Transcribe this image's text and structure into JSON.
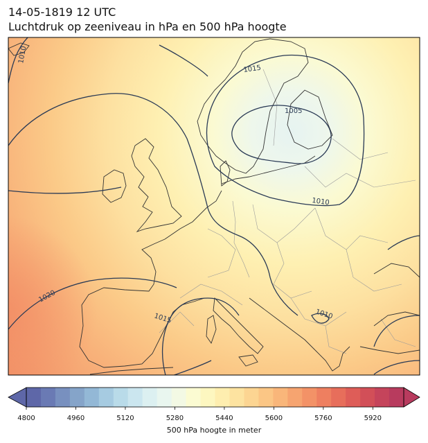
{
  "header": {
    "datetime": "14-05-1819 12 UTC",
    "title": "Luchtdruk op zeeniveau in hPa en 500 hPa hoogte"
  },
  "map": {
    "region": "Europe",
    "isobar_labels": [
      {
        "name": "isobar-label-1010-west",
        "text": "1010"
      },
      {
        "name": "isobar-label-1015-north",
        "text": "1015"
      },
      {
        "name": "isobar-label-1005",
        "text": "1005"
      },
      {
        "name": "isobar-label-1010-east",
        "text": "1010"
      },
      {
        "name": "isobar-label-1020",
        "text": "1020"
      },
      {
        "name": "isobar-label-1015-south",
        "text": "1015"
      },
      {
        "name": "isobar-label-1010-southeast",
        "text": "1010"
      }
    ],
    "colors": {
      "isobar": "#2a3a55",
      "coast": "#333333",
      "border": "#9a9a9a"
    }
  },
  "colorbar": {
    "label": "500 hPa hoogte in meter",
    "min": 4800,
    "max": 5980,
    "step": 40,
    "ticks": [
      4800,
      4960,
      5120,
      5280,
      5440,
      5600,
      5760,
      5920
    ],
    "tick_labels": [
      "4800",
      "4960",
      "5120",
      "5280",
      "5440",
      "5600",
      "5760",
      "5920"
    ],
    "colors": [
      "#5e67a8",
      "#6a7ab4",
      "#7890bf",
      "#85a4c9",
      "#93b8d6",
      "#a6cbe1",
      "#b9dbe9",
      "#cbe6ef",
      "#dcf0f1",
      "#e9f6ef",
      "#f3f9e4",
      "#fbfbd2",
      "#fdf7c0",
      "#feeeaf",
      "#fde3a0",
      "#fcd592",
      "#fbc685",
      "#f9b67a",
      "#f6a470",
      "#f39267",
      "#ee7f60",
      "#e76e5b",
      "#de5d58",
      "#d24f58",
      "#c5445b",
      "#b83b5e"
    ]
  }
}
